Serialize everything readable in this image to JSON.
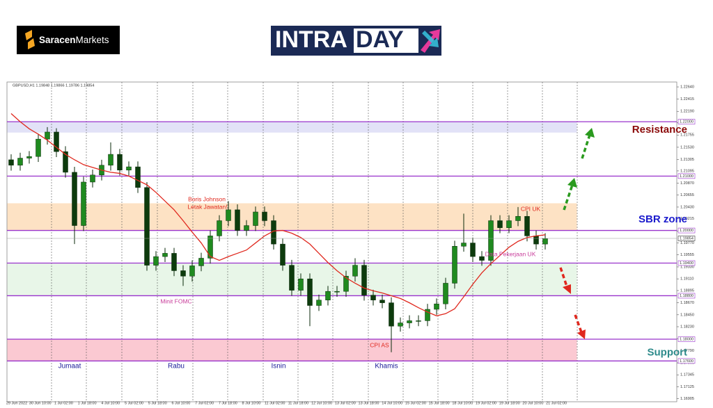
{
  "brand": [
    "Saracen",
    "Markets"
  ],
  "logo": [
    "INTRA",
    "DAY"
  ],
  "annotations": {
    "boris_1": "Boris Johnson",
    "boris_2": "Letak Jawatan!",
    "fomc": "Minit FOMC",
    "cpi_us": "CPI AS",
    "cpi_uk": "CPI UK",
    "jobs_uk": "Data Pekerjaan UK",
    "days": [
      "Jumaat",
      "Rabu",
      "Isnin",
      "Khamis"
    ]
  },
  "chart_data": {
    "type": "candlestick",
    "symbol_info": "GBPUSD,H1  1.19848 1.19866 1.19786 1.19854",
    "up_color": "#1f8a1f",
    "down_color": "#0d3b0d",
    "ylim": [
      1.1685,
      1.2273
    ],
    "yticks": [
      {
        "value": 1.2264,
        "label": "1.22640"
      },
      {
        "value": 1.22415,
        "label": "1.22415"
      },
      {
        "value": 1.2219,
        "label": "1.22190"
      },
      {
        "value": 1.2198,
        "label": "1.21980"
      },
      {
        "value": 1.21755,
        "label": "1.21755"
      },
      {
        "value": 1.2153,
        "label": "1.21530"
      },
      {
        "value": 1.21305,
        "label": "1.21305"
      },
      {
        "value": 1.21095,
        "label": "1.21095"
      },
      {
        "value": 1.2087,
        "label": "1.20870"
      },
      {
        "value": 1.20655,
        "label": "1.20655"
      },
      {
        "value": 1.2043,
        "label": "1.20430"
      },
      {
        "value": 1.20215,
        "label": "1.20215"
      },
      {
        "value": 1.1999,
        "label": "1.19990"
      },
      {
        "value": 1.1977,
        "label": "1.19770"
      },
      {
        "value": 1.19555,
        "label": "1.19555"
      },
      {
        "value": 1.1933,
        "label": "1.19330"
      },
      {
        "value": 1.1911,
        "label": "1.19110"
      },
      {
        "value": 1.18895,
        "label": "1.18895"
      },
      {
        "value": 1.1867,
        "label": "1.18670"
      },
      {
        "value": 1.1845,
        "label": "1.18450"
      },
      {
        "value": 1.1823,
        "label": "1.18230"
      },
      {
        "value": 1.1801,
        "label": "1.18010"
      },
      {
        "value": 1.1779,
        "label": "1.17790"
      },
      {
        "value": 1.17565,
        "label": "1.17565"
      },
      {
        "value": 1.17345,
        "label": "1.17345"
      },
      {
        "value": 1.17125,
        "label": "1.17125"
      },
      {
        "value": 1.16905,
        "label": "1.16905"
      }
    ],
    "xtick_labels": [
      "29 Jun 2022",
      "30 Jun 10:00",
      "1 Jul 02:00",
      "1 Jul 18:00",
      "4 Jul 10:00",
      "5 Jul 02:00",
      "5 Jul 18:00",
      "6 Jul 10:00",
      "7 Jul 02:00",
      "7 Jul 18:00",
      "8 Jul 10:00",
      "11 Jul 02:00",
      "11 Jul 18:00",
      "12 Jul 10:00",
      "13 Jul 02:00",
      "13 Jul 18:00",
      "14 Jul 10:00",
      "15 Jul 02:00",
      "15 Jul 18:00",
      "18 Jul 10:00",
      "19 Jul 02:00",
      "19 Jul 18:00",
      "20 Jul 10:00",
      "21 Jul 02:00"
    ],
    "open": [
      1.213,
      1.212,
      1.2133,
      1.2136,
      1.2168,
      1.2181,
      1.2145,
      1.2107,
      1.2009,
      1.2089,
      1.2102,
      1.212,
      1.214,
      1.2111,
      1.2117,
      1.2079,
      1.1936,
      1.1952,
      1.1958,
      1.1926,
      1.1916,
      1.1935,
      1.1949,
      1.199,
      1.2018,
      1.2038,
      1.2,
      1.2009,
      1.2034,
      1.2018,
      1.1975,
      1.1936,
      1.189,
      1.1911,
      1.1862,
      1.1872,
      1.1888,
      1.1888,
      1.1916,
      1.1936,
      1.1881,
      1.1872,
      1.1867,
      1.1824,
      1.183,
      1.1834,
      1.1834,
      1.1855,
      1.1865,
      1.1903,
      1.1971,
      1.1977,
      1.1952,
      1.1945,
      1.2018,
      1.2005,
      1.2018,
      1.2026,
      1.199,
      1.1975
    ],
    "high": [
      1.214,
      1.2143,
      1.2146,
      1.2178,
      1.219,
      1.2188,
      1.2155,
      1.2117,
      1.2099,
      1.2112,
      1.213,
      1.2162,
      1.215,
      1.2127,
      1.2127,
      1.2089,
      1.1962,
      1.1968,
      1.1968,
      1.1936,
      1.1945,
      1.1959,
      1.2,
      1.2028,
      1.2054,
      1.2048,
      1.2019,
      1.2044,
      1.2044,
      1.2028,
      1.1985,
      1.1946,
      1.1921,
      1.1921,
      1.1882,
      1.1898,
      1.1898,
      1.1926,
      1.1949,
      1.1946,
      1.1891,
      1.1882,
      1.1877,
      1.184,
      1.1844,
      1.1844,
      1.1865,
      1.1875,
      1.1913,
      1.1981,
      1.2031,
      1.1987,
      1.1962,
      1.2028,
      1.2028,
      1.2028,
      1.2043,
      1.2036,
      1.2,
      1.1995
    ],
    "low": [
      1.211,
      1.211,
      1.2123,
      1.2126,
      1.2158,
      1.2135,
      1.2097,
      1.1975,
      1.1999,
      1.2079,
      1.2092,
      1.211,
      1.2101,
      1.2101,
      1.2069,
      1.1926,
      1.1926,
      1.1942,
      1.1916,
      1.1898,
      1.1906,
      1.1925,
      1.1939,
      1.198,
      1.2008,
      1.199,
      1.199,
      1.1999,
      1.2008,
      1.1965,
      1.1926,
      1.188,
      1.188,
      1.1824,
      1.1852,
      1.1862,
      1.1878,
      1.1878,
      1.1906,
      1.1871,
      1.1862,
      1.1857,
      1.1776,
      1.1814,
      1.182,
      1.1824,
      1.1824,
      1.1845,
      1.1855,
      1.1893,
      1.1961,
      1.1942,
      1.1935,
      1.1935,
      1.1995,
      1.1995,
      1.2008,
      1.198,
      1.1965,
      1.1965
    ],
    "close": [
      1.212,
      1.2133,
      1.2136,
      1.2168,
      1.2181,
      1.2145,
      1.2107,
      1.2009,
      1.2089,
      1.2102,
      1.212,
      1.214,
      1.2111,
      1.2117,
      1.2079,
      1.1936,
      1.1952,
      1.1958,
      1.1926,
      1.1916,
      1.1935,
      1.1949,
      1.199,
      1.2018,
      1.2038,
      1.2,
      1.2009,
      1.2034,
      1.2018,
      1.1975,
      1.1936,
      1.189,
      1.1911,
      1.1862,
      1.1872,
      1.1888,
      1.1888,
      1.1916,
      1.1936,
      1.1881,
      1.1872,
      1.1867,
      1.1824,
      1.183,
      1.1834,
      1.1834,
      1.1855,
      1.1865,
      1.1903,
      1.1971,
      1.1977,
      1.1952,
      1.1945,
      1.2018,
      1.2005,
      1.2018,
      1.2026,
      1.199,
      1.1975,
      1.1985
    ],
    "ma": {
      "color": "#e0281e",
      "values": [
        1.2215,
        1.22,
        1.2187,
        1.2177,
        1.2166,
        1.2153,
        1.214,
        1.213,
        1.2121,
        1.2116,
        1.2111,
        1.2107,
        1.2105,
        1.21,
        1.2092,
        1.2084,
        1.207,
        1.2054,
        1.2038,
        1.2018,
        1.1997,
        1.1977,
        1.1952,
        1.1945,
        1.1952,
        1.1958,
        1.1964,
        1.1977,
        1.199,
        1.1999,
        1.2,
        1.1995,
        1.1987,
        1.1975,
        1.1958,
        1.1941,
        1.1926,
        1.1913,
        1.1903,
        1.1894,
        1.1889,
        1.1885,
        1.188,
        1.1875,
        1.1867,
        1.1858,
        1.185,
        1.1843,
        1.1847,
        1.1856,
        1.1878,
        1.1901,
        1.1922,
        1.1939,
        1.1954,
        1.1969,
        1.198,
        1.1987,
        1.199,
        1.1992
      ]
    },
    "zones": [
      {
        "from": 1.218,
        "to": 1.22,
        "color": "#e2e2f7",
        "label": "Resistance",
        "label_color": "#8b0a0a"
      },
      {
        "from": 1.2,
        "to": 1.205,
        "color": "#fde2c4",
        "label": "SBR zone",
        "label_color": "#1a1acc"
      },
      {
        "from": 1.188,
        "to": 1.194,
        "color": "#e8f6e8"
      },
      {
        "from": 1.176,
        "to": 1.18,
        "color": "#fbc9d2",
        "label": "Support",
        "label_color": "#2e8b8b"
      }
    ],
    "level_color": "#9933cc",
    "levels": [
      {
        "value": 1.22,
        "label": "1.22000"
      },
      {
        "value": 1.21,
        "label": "1.21000"
      },
      {
        "value": 1.2,
        "label": "1.20000"
      },
      {
        "value": 1.194,
        "label": "1.19400"
      },
      {
        "value": 1.188,
        "label": "1.18800"
      },
      {
        "value": 1.18,
        "label": "1.18000"
      },
      {
        "value": 1.176,
        "label": "1.17600"
      }
    ],
    "current_price": {
      "value": 1.19854,
      "label": "1.19854"
    }
  }
}
